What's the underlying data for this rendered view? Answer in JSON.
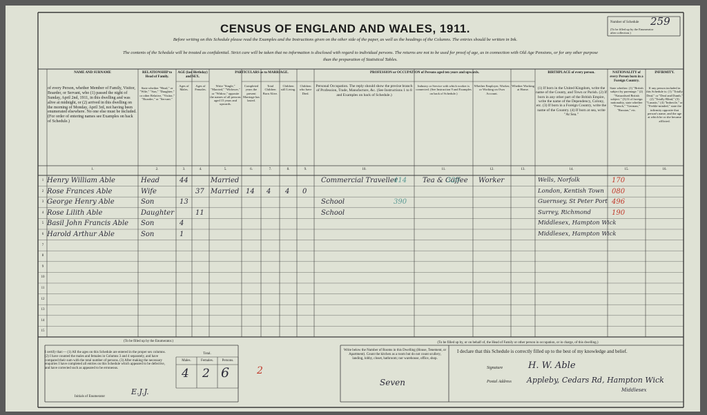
{
  "header": {
    "title": "CENSUS OF ENGLAND AND WALES, 1911.",
    "instruction1": "Before writing on this Schedule please read the Examples and the Instructions given on the other side of the paper, as well as the headings of the Columns. The entries should be written in Ink.",
    "instruction2": "The contents of the Schedule will be treated as confidential. Strict care will be taken that no information is disclosed with regard to individual persons. The returns are not to be used for proof of age, as in connection with Old Age Pensions, or for any other purpose",
    "instruction3": "than the preparation of Statistical Tables.",
    "schedule_label": "Number of Schedule",
    "schedule_note": "(To be filled up by the Enumerator after collection.)",
    "schedule_number": "259"
  },
  "columns": [
    {
      "heading": "NAME AND SURNAME",
      "text": "of every Person, whether Member of Family, Visitor, Boarder, or Servant, who (1) passed the night of Sunday, April 2nd, 1911, in this dwelling and was alive at midnight, or (2) arrived in this dwelling on the morning of Monday, April 3rd, not having been enumerated elsewhere. No one else must be included. (For order of entering names see Examples on back of Schedule.)",
      "number": "1."
    },
    {
      "heading": "RELATIONSHIP to Head of Family.",
      "text": "State whether \"Head,\" or \"Wife,\" \"Son,\" \"Daughter,\" or other Relative, \"Visitor,\" \"Boarder,\" or \"Servant.\"",
      "number": "2."
    },
    {
      "heading": "AGE (last Birthday) and SEX.",
      "text": "Ages of Males.",
      "number": "3."
    },
    {
      "heading": "",
      "text": "Ages of Females.",
      "number": "4."
    },
    {
      "heading": "PARTICULARS as to MARRIAGE.",
      "text": "Write \"Single,\" \"Married,\" \"Widower,\" or \"Widow,\" opposite the names of all persons aged 15 years and upwards.",
      "number": "5."
    },
    {
      "heading": "",
      "text": "Completed years the present Marriage has lasted.",
      "number": "6."
    },
    {
      "heading": "",
      "text": "Total Children Born Alive.",
      "number": "7."
    },
    {
      "heading": "",
      "text": "Children still Living.",
      "number": "8."
    },
    {
      "heading": "",
      "text": "Children who have Died.",
      "number": "9."
    },
    {
      "heading": "PROFESSION or OCCUPATION of Persons aged ten years and upwards.",
      "text": "Personal Occupation. The reply should show the precise branch of Profession, Trade, Manufacture, &c. (See Instructions 1 to 8 and Examples on back of Schedule.)",
      "number": "10."
    },
    {
      "heading": "",
      "text": "Industry or Service with which worker is connected. (See Instruction 9 and Examples on back of Schedule.)",
      "number": "11."
    },
    {
      "heading": "",
      "text": "Whether Employer, Worker, or Working on Own Account.",
      "number": "12."
    },
    {
      "heading": "",
      "text": "Whether Working at Home.",
      "number": "13."
    },
    {
      "heading": "BIRTHPLACE of every person.",
      "text": "(1) If born in the United Kingdom, write the name of the County, and Town or Parish. (2) If born in any other part of the British Empire, write the name of the Dependency, Colony, etc. (3) If born in a Foreign Country, write the name of the Country. (4) If born at sea, write \"At Sea.\"",
      "number": "14."
    },
    {
      "heading": "NATIONALITY of every Person born in a Foreign Country.",
      "text": "State whether: (1) \"British subject by parentage.\" (2) \"Naturalised British subject.\" (3) If of foreign nationality, state whether \"French,\" \"German,\" \"Russian,\" etc.",
      "number": "15."
    },
    {
      "heading": "INFIRMITY.",
      "text": "If any person included in this Schedule is: (1) \"Totally Deaf,\" or \"Deaf and Dumb,\" (2) \"Totally Blind,\" (3) \"Lunatic,\" (4) \"Imbecile,\" or \"Feeble-minded,\" state the infirmity opposite that person's name, and the age at which he or she became afflicted.",
      "number": "16."
    }
  ],
  "row_numbers": [
    "1",
    "2",
    "3",
    "4",
    "5",
    "6",
    "7",
    "8",
    "9",
    "10",
    "11",
    "12",
    "13",
    "14",
    "15"
  ],
  "rows": [
    {
      "name": "Henry William Able",
      "relationship": "Head",
      "age_male": "44",
      "condition": "Married",
      "occupation": "Commercial Traveller",
      "occ_code": "414",
      "industry": "Tea & Coffee",
      "ind_code": "320",
      "employment": "Worker",
      "birthplace": "Wells, Norfolk",
      "birth_code": "170"
    },
    {
      "name": "Rose Frances Able",
      "relationship": "Wife",
      "age_female": "37",
      "condition": "Married",
      "years_married": "14",
      "born": "4",
      "living": "4",
      "died": "0",
      "birthplace": "London, Kentish Town",
      "birth_code": "080"
    },
    {
      "name": "George Henry Able",
      "relationship": "Son",
      "age_male": "13",
      "occupation": "School",
      "occ_code": "390",
      "birthplace": "Guernsey, St Peter Port",
      "birth_code": "496"
    },
    {
      "name": "Rose Lilith Able",
      "relationship": "Daughter",
      "age_female": "11",
      "occupation": "School",
      "birthplace": "Surrey, Richmond",
      "birth_code": "190"
    },
    {
      "name": "Basil John Francis Able",
      "relationship": "Son",
      "age_male": "4",
      "birthplace": "Middlesex, Hampton Wick"
    },
    {
      "name": "Harold Arthur Able",
      "relationship": "Son",
      "age_male": "1",
      "birthplace": "Middlesex, Hampton Wick"
    }
  ],
  "footer": {
    "enumerator_heading": "(To be filled up by the Enumerator.)",
    "enumerator_note": "I certify that:— (1) All the ages on this Schedule are entered in the proper sex columns. (2) I have counted the males and females in Columns 3 and 4 separately, and have compared their sum with the total number of persons. (3) After making the necessary enquiries I have completed all entries on this Schedule which appeared to be defective, and have corrected such as appeared to be erroneous.",
    "initials_label": "Initials of Enumerator",
    "initials": "E.J.J.",
    "total_label": "Total.",
    "males_label": "Males.",
    "females_label": "Females.",
    "persons_label": "Persons.",
    "males": "4",
    "females": "2",
    "persons": "6",
    "red_mark": "2",
    "head_heading": "(To be filled up by, or on behalf of, the Head of Family or other person in occupation, or in charge, of this dwelling.)",
    "rooms_note": "Write below the Number of Rooms in this Dwelling (House, Tenement, or Apartment). Count the kitchen as a room but do not count scullery, landing, lobby, closet, bathroom; nor warehouse, office, shop.",
    "rooms": "Seven",
    "declaration": "I declare that this Schedule is correctly filled up to the best of my knowledge and belief.",
    "signature_label": "Signature",
    "signature": "H. W. Able",
    "address_label": "Postal Address",
    "address": "Appleby, Cedars Rd, Hampton Wick",
    "county": "Middlesex"
  }
}
